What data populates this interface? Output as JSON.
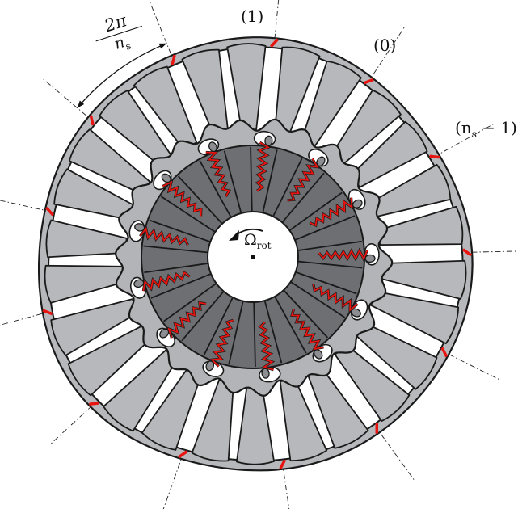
{
  "labels": {
    "sector_1": "(1)",
    "sector_0": "(0)",
    "sector_last_prefix": "(n",
    "sector_last_sub": "s",
    "sector_last_suffix": " − 1)",
    "pitch_numerator": "2π",
    "pitch_denominator": "n",
    "pitch_denominator_sub": "s",
    "rotation_symbol": "Ω",
    "rotation_sub": "rot"
  },
  "colors": {
    "outer_ring": "#b7b8bb",
    "stator_ring": "#b3b4b7",
    "rotor_disk": "#6e6f73",
    "rotor_slot": "#55565a",
    "outline": "#1a1a1a",
    "contact": "#e8140f",
    "hub": "#ffffff"
  },
  "diagram": {
    "sector_count": 13,
    "arrow_direction": "counter-clockwise"
  }
}
